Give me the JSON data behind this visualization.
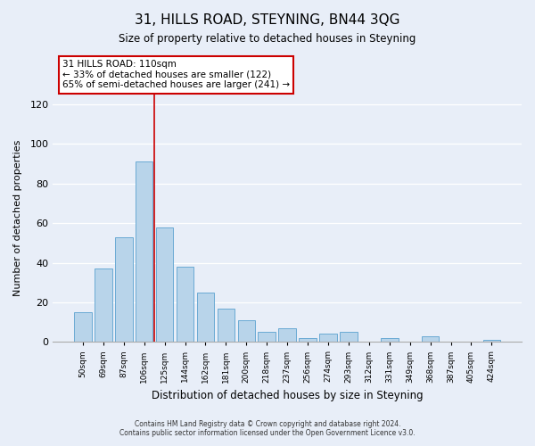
{
  "title": "31, HILLS ROAD, STEYNING, BN44 3QG",
  "subtitle": "Size of property relative to detached houses in Steyning",
  "xlabel": "Distribution of detached houses by size in Steyning",
  "ylabel": "Number of detached properties",
  "bar_labels": [
    "50sqm",
    "69sqm",
    "87sqm",
    "106sqm",
    "125sqm",
    "144sqm",
    "162sqm",
    "181sqm",
    "200sqm",
    "218sqm",
    "237sqm",
    "256sqm",
    "274sqm",
    "293sqm",
    "312sqm",
    "331sqm",
    "349sqm",
    "368sqm",
    "387sqm",
    "405sqm",
    "424sqm"
  ],
  "bar_values": [
    15,
    37,
    53,
    91,
    58,
    38,
    25,
    17,
    11,
    5,
    7,
    2,
    4,
    5,
    0,
    2,
    0,
    3,
    0,
    0,
    1
  ],
  "bar_color": "#b8d4ea",
  "bar_edge_color": "#6aaad4",
  "vline_color": "#cc0000",
  "annotation_title": "31 HILLS ROAD: 110sqm",
  "annotation_line1": "← 33% of detached houses are smaller (122)",
  "annotation_line2": "65% of semi-detached houses are larger (241) →",
  "annotation_box_color": "#ffffff",
  "annotation_box_edge": "#cc0000",
  "ylim": [
    0,
    125
  ],
  "yticks": [
    0,
    20,
    40,
    60,
    80,
    100,
    120
  ],
  "footer1": "Contains HM Land Registry data © Crown copyright and database right 2024.",
  "footer2": "Contains public sector information licensed under the Open Government Licence v3.0.",
  "bg_color": "#e8eef8",
  "grid_color": "#ffffff"
}
